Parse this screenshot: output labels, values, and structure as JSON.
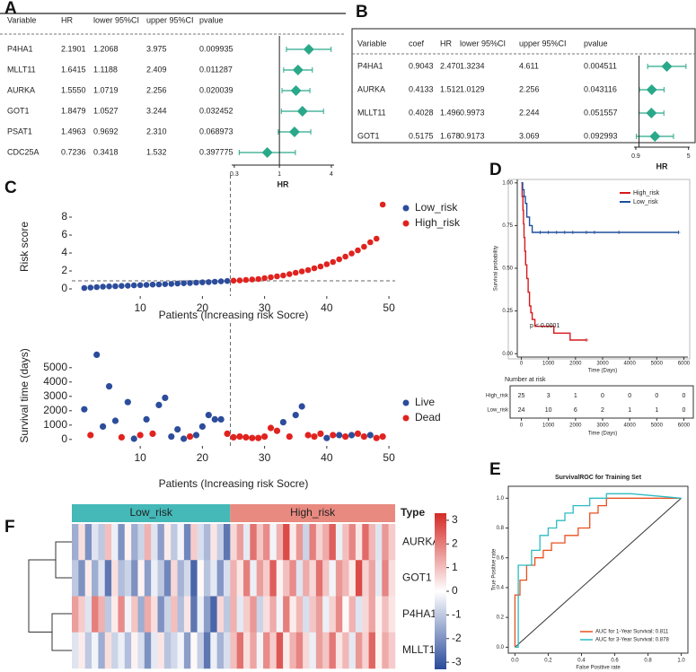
{
  "chart_data": [
    {
      "type": "forest",
      "label": "A",
      "columns": [
        "Variable",
        "HR",
        "lower 95%CI",
        "upper 95%CI",
        "pvalue"
      ],
      "rows": [
        [
          "P4HA1",
          "2.1901",
          "1.2068",
          "3.975",
          "0.009935"
        ],
        [
          "MLLT11",
          "1.6415",
          "1.1188",
          "2.409",
          "0.011287"
        ],
        [
          "AURKA",
          "1.5550",
          "1.0719",
          "2.256",
          "0.020039"
        ],
        [
          "GOT1",
          "1.8479",
          "1.0527",
          "3.244",
          "0.032452"
        ],
        [
          "PSAT1",
          "1.4963",
          "0.9692",
          "2.310",
          "0.068973"
        ],
        [
          "CDC25A",
          "0.7236",
          "0.3418",
          "1.532",
          "0.397775"
        ]
      ],
      "color": "#2aa88a",
      "log": true,
      "xlim": [
        0.28,
        4.3
      ],
      "xticks": [
        0.3,
        1,
        4
      ],
      "ref": 1,
      "xlabel": "HR"
    },
    {
      "type": "forest",
      "label": "B",
      "columns": [
        "Variable",
        "coef",
        "HR",
        "lower 95%CI",
        "upper 95%CI",
        "pvalue"
      ],
      "rows": [
        [
          "P4HA1",
          "0.9043",
          "2.470",
          "1.3234",
          "4.611",
          "0.004511"
        ],
        [
          "AURKA",
          "0.4133",
          "1.512",
          "1.0129",
          "2.256",
          "0.043116"
        ],
        [
          "MLLT11",
          "0.4028",
          "1.496",
          "0.9973",
          "2.244",
          "0.051557"
        ],
        [
          "GOT1",
          "0.5175",
          "1.678",
          "0.9173",
          "3.069",
          "0.092993"
        ]
      ],
      "color": "#2aa88a",
      "log": true,
      "xlim": [
        0.85,
        5.2
      ],
      "xticks": [
        0.9,
        5
      ],
      "ref": 1,
      "xlabel": "HR"
    },
    {
      "type": "scatter",
      "label": "C",
      "xlabel": "Patients (Increasing risk Socre)",
      "ylabel": "Risk score",
      "xlim": [
        -1,
        51
      ],
      "xticks": [
        10,
        20,
        30,
        40,
        50
      ],
      "ylim": [
        -0.8,
        10.2
      ],
      "yticks": [
        0,
        2,
        4,
        6,
        8
      ],
      "cutoff_x": 24.5,
      "cutoff_y": 0.9,
      "series": [
        {
          "name": "Low_risk",
          "color": "#2c4d9c",
          "x": [
            1,
            2,
            3,
            4,
            5,
            6,
            7,
            8,
            9,
            10,
            11,
            12,
            13,
            14,
            15,
            16,
            17,
            18,
            19,
            20,
            21,
            22,
            23,
            24
          ],
          "values": [
            0.1,
            0.15,
            0.2,
            0.25,
            0.28,
            0.3,
            0.33,
            0.36,
            0.4,
            0.42,
            0.45,
            0.48,
            0.5,
            0.53,
            0.56,
            0.6,
            0.63,
            0.66,
            0.7,
            0.73,
            0.76,
            0.8,
            0.84,
            0.88
          ]
        },
        {
          "name": "High_risk",
          "color": "#e0231f",
          "x": [
            25,
            26,
            27,
            28,
            29,
            30,
            31,
            32,
            33,
            34,
            35,
            36,
            37,
            38,
            39,
            40,
            41,
            42,
            43,
            44,
            45,
            46,
            47,
            48,
            49
          ],
          "values": [
            0.92,
            0.95,
            1.0,
            1.05,
            1.1,
            1.2,
            1.3,
            1.4,
            1.5,
            1.65,
            1.8,
            1.95,
            2.1,
            2.3,
            2.5,
            2.75,
            3.0,
            3.3,
            3.6,
            3.95,
            4.3,
            4.7,
            5.2,
            5.6,
            9.4
          ]
        }
      ]
    },
    {
      "type": "scatter",
      "xlabel": "Patients (Increasing risk Socre)",
      "ylabel": "Survival time (days)",
      "xlim": [
        -1,
        51
      ],
      "xticks": [
        10,
        20,
        30,
        40,
        50
      ],
      "ylim": [
        -450,
        6550
      ],
      "yticks": [
        0,
        1000,
        2000,
        3000,
        4000,
        5000
      ],
      "cutoff_x": 24.5,
      "series": [
        {
          "name": "Live",
          "color": "#2c4d9c",
          "x": [
            1,
            3,
            4,
            5,
            6,
            8,
            9,
            11,
            13,
            14,
            15,
            16,
            17,
            19,
            20,
            21,
            22,
            23,
            33,
            35,
            36,
            40,
            42,
            44,
            47
          ],
          "values": [
            2100,
            5900,
            900,
            3700,
            1300,
            2600,
            50,
            1400,
            2400,
            2900,
            200,
            700,
            50,
            300,
            900,
            1700,
            1400,
            1400,
            1200,
            1700,
            2300,
            100,
            300,
            300,
            300
          ]
        },
        {
          "name": "Dead",
          "color": "#e0231f",
          "x": [
            2,
            7,
            10,
            12,
            18,
            24,
            25,
            26,
            27,
            28,
            29,
            30,
            31,
            32,
            34,
            37,
            38,
            39,
            41,
            43,
            45,
            46,
            48,
            49
          ],
          "values": [
            300,
            150,
            300,
            400,
            200,
            400,
            150,
            200,
            150,
            100,
            100,
            200,
            800,
            600,
            200,
            300,
            200,
            400,
            300,
            200,
            400,
            200,
            100,
            200
          ]
        }
      ]
    },
    {
      "type": "km",
      "label": "D",
      "xlabel": "Time (Days)",
      "ylabel": "Survival probability",
      "xlim": [
        -150,
        6150
      ],
      "xticks": [
        0,
        1000,
        2000,
        3000,
        4000,
        5000,
        6000
      ],
      "ylim": [
        -0.02,
        1.02
      ],
      "yticks": [
        {
          "value": 0,
          "label": "0.00"
        },
        0.25,
        {
          "value": 0.5,
          "label": "0.50"
        },
        0.75,
        {
          "value": 1,
          "label": "1.00"
        }
      ],
      "annotation": "p < 0.0001",
      "series": [
        {
          "name": "High_risk",
          "color": "#d7191c",
          "x": [
            0,
            30,
            30,
            60,
            60,
            80,
            80,
            100,
            100,
            130,
            130,
            160,
            160,
            200,
            200,
            250,
            250,
            300,
            300,
            350,
            350,
            400,
            400,
            500,
            500,
            1200,
            1200,
            1800,
            1800,
            2400
          ],
          "values": [
            1,
            1,
            0.92,
            0.92,
            0.84,
            0.84,
            0.76,
            0.76,
            0.68,
            0.68,
            0.6,
            0.6,
            0.52,
            0.52,
            0.44,
            0.44,
            0.36,
            0.36,
            0.28,
            0.28,
            0.24,
            0.24,
            0.2,
            0.2,
            0.16,
            0.16,
            0.12,
            0.12,
            0.08,
            0.08
          ],
          "censored": [
            2400
          ]
        },
        {
          "name": "Low_risk",
          "color": "#1f4e9c",
          "x": [
            0,
            50,
            50,
            100,
            100,
            150,
            150,
            200,
            200,
            300,
            300,
            400,
            400,
            5800
          ],
          "values": [
            1,
            1,
            0.96,
            0.96,
            0.92,
            0.92,
            0.88,
            0.88,
            0.8,
            0.8,
            0.75,
            0.75,
            0.71,
            0.71
          ],
          "censored": [
            700,
            1000,
            1300,
            1600,
            1900,
            2400,
            2700,
            3600,
            5800
          ]
        }
      ],
      "risk_table": {
        "title": "Number at risk",
        "rows": [
          {
            "name": "High_risk",
            "color": "#d7191c",
            "values": [
              25,
              3,
              1,
              0,
              0,
              0,
              0
            ]
          },
          {
            "name": "Low_risk",
            "color": "#1f4e9c",
            "values": [
              24,
              10,
              6,
              2,
              1,
              1,
              0
            ]
          }
        ]
      }
    },
    {
      "type": "line",
      "label": "E",
      "title": "SurvivalROC for Training Set",
      "xlabel": "False Positive rate",
      "ylabel": "True Positive rate",
      "xlim": [
        -0.04,
        1.04
      ],
      "xticks": [
        {
          "value": 0,
          "label": "0.0"
        },
        0.2,
        0.4,
        0.6,
        0.8,
        {
          "value": 1,
          "label": "1.0"
        }
      ],
      "ylim": [
        -0.04,
        1.08
      ],
      "yticks": [
        {
          "value": 0,
          "label": "0.0"
        },
        0.2,
        0.4,
        0.6,
        0.8,
        {
          "value": 1,
          "label": "1.0"
        }
      ],
      "series": [
        {
          "name": "AUC for 1-Year Survival: 0.811",
          "color": "#e8501f",
          "x": [
            0,
            0,
            0.03,
            0.03,
            0.07,
            0.07,
            0.12,
            0.12,
            0.17,
            0.17,
            0.22,
            0.22,
            0.3,
            0.3,
            0.38,
            0.38,
            0.45,
            0.45,
            0.5,
            0.5,
            0.55,
            0.55,
            0.67,
            1
          ],
          "values": [
            0,
            0.35,
            0.35,
            0.45,
            0.45,
            0.55,
            0.55,
            0.6,
            0.6,
            0.65,
            0.65,
            0.7,
            0.7,
            0.75,
            0.75,
            0.8,
            0.8,
            0.9,
            0.9,
            0.95,
            0.95,
            1,
            1,
            1
          ]
        },
        {
          "name": "AUC for 3-Year Survival: 0.878",
          "color": "#2bbcc3",
          "x": [
            0,
            0.02,
            0.02,
            0.1,
            0.1,
            0.15,
            0.15,
            0.2,
            0.2,
            0.25,
            0.25,
            0.3,
            0.3,
            0.35,
            0.35,
            0.45,
            0.45,
            0.55,
            0.55,
            0.7,
            1
          ],
          "values": [
            0,
            0,
            0.55,
            0.55,
            0.65,
            0.65,
            0.75,
            0.75,
            0.8,
            0.8,
            0.85,
            0.85,
            0.9,
            0.9,
            0.95,
            0.95,
            1,
            1,
            1.03,
            1.03,
            1
          ]
        }
      ]
    },
    {
      "type": "heatmap",
      "label": "F",
      "rows": [
        "AURKA",
        "GOT1",
        "P4HA1",
        "MLLT11"
      ],
      "annotation": {
        "title": "Type",
        "groups": [
          {
            "name": "Low_risk",
            "color": "#45b8b8",
            "n": 24
          },
          {
            "name": "High_risk",
            "color": "#e88a80",
            "n": 25
          }
        ]
      },
      "colors": [
        "#2a4b9b",
        "#ffffff",
        "#d42b27"
      ],
      "zlim": [
        -3.3,
        3.3
      ],
      "zticks": [
        3,
        2,
        1,
        0,
        -1,
        -2,
        -3
      ],
      "values": [
        [
          -1.5,
          0.5,
          -2,
          -0.5,
          -1,
          1,
          -0.3,
          -2,
          0.2,
          -1.5,
          -0.8,
          1.2,
          -0.5,
          -1.8,
          0.3,
          -1,
          -0.2,
          -2.2,
          0.8,
          -0.6,
          -1.3,
          0.4,
          -0.9,
          -2.5,
          0.6,
          1.5,
          -0.4,
          2.2,
          0.9,
          1.8,
          -0.2,
          1.2,
          2.8,
          0.3,
          1.6,
          -0.8,
          2.0,
          0.7,
          1.3,
          2.5,
          -0.3,
          1.0,
          1.9,
          0.4,
          2.3,
          1.1,
          -0.5,
          1.6,
          0.8
        ],
        [
          -1,
          -2,
          0.3,
          -1.5,
          -0.5,
          -2.5,
          0.5,
          -1.2,
          -0.8,
          -2,
          0.2,
          -1.8,
          -0.3,
          -1,
          -2.2,
          0.6,
          -1.4,
          -0.7,
          -2.8,
          0.1,
          -1.1,
          -0.4,
          -1.9,
          -0.6,
          1.2,
          0.4,
          2.0,
          -0.3,
          1.5,
          0.8,
          2.5,
          0.2,
          1.0,
          1.8,
          -0.5,
          1.3,
          0.6,
          2.2,
          0.9,
          -0.2,
          1.6,
          1.1,
          0.3,
          2.8,
          0.7,
          1.4,
          -0.4,
          1.9,
          0.5
        ],
        [
          1.5,
          0.8,
          -0.5,
          2,
          1.2,
          -1,
          0.3,
          1.8,
          -0.2,
          0.9,
          -1.5,
          1.3,
          0.5,
          -2,
          -0.8,
          1,
          -1.2,
          0.4,
          -2.5,
          -0.3,
          -1.8,
          -2.8,
          0.6,
          -1,
          1.2,
          -0.4,
          0.8,
          1.6,
          -0.8,
          0.5,
          1.3,
          -0.2,
          2.0,
          0.3,
          1.1,
          -0.6,
          0.9,
          1.5,
          -0.3,
          0.7,
          1.8,
          0.1,
          1.2,
          -0.5,
          0.6,
          1.4,
          0.2,
          1.0,
          0.4
        ],
        [
          -0.5,
          0.3,
          -1,
          -0.2,
          -1.5,
          0.5,
          -0.8,
          -0.3,
          -1.2,
          0.2,
          -0.6,
          -2,
          -0.4,
          0.4,
          -1.1,
          -0.7,
          -0.2,
          -1.8,
          0.1,
          -0.9,
          -2.5,
          -0.3,
          -1.4,
          -0.6,
          1.0,
          2.2,
          0.5,
          1.4,
          -0.2,
          1.8,
          0.8,
          2.6,
          0.3,
          1.2,
          1.9,
          0.6,
          -0.3,
          1.5,
          0.9,
          2.1,
          0.4,
          1.1,
          -0.4,
          1.6,
          0.7,
          2.4,
          0.2,
          1.3,
          0.8
        ]
      ]
    }
  ]
}
